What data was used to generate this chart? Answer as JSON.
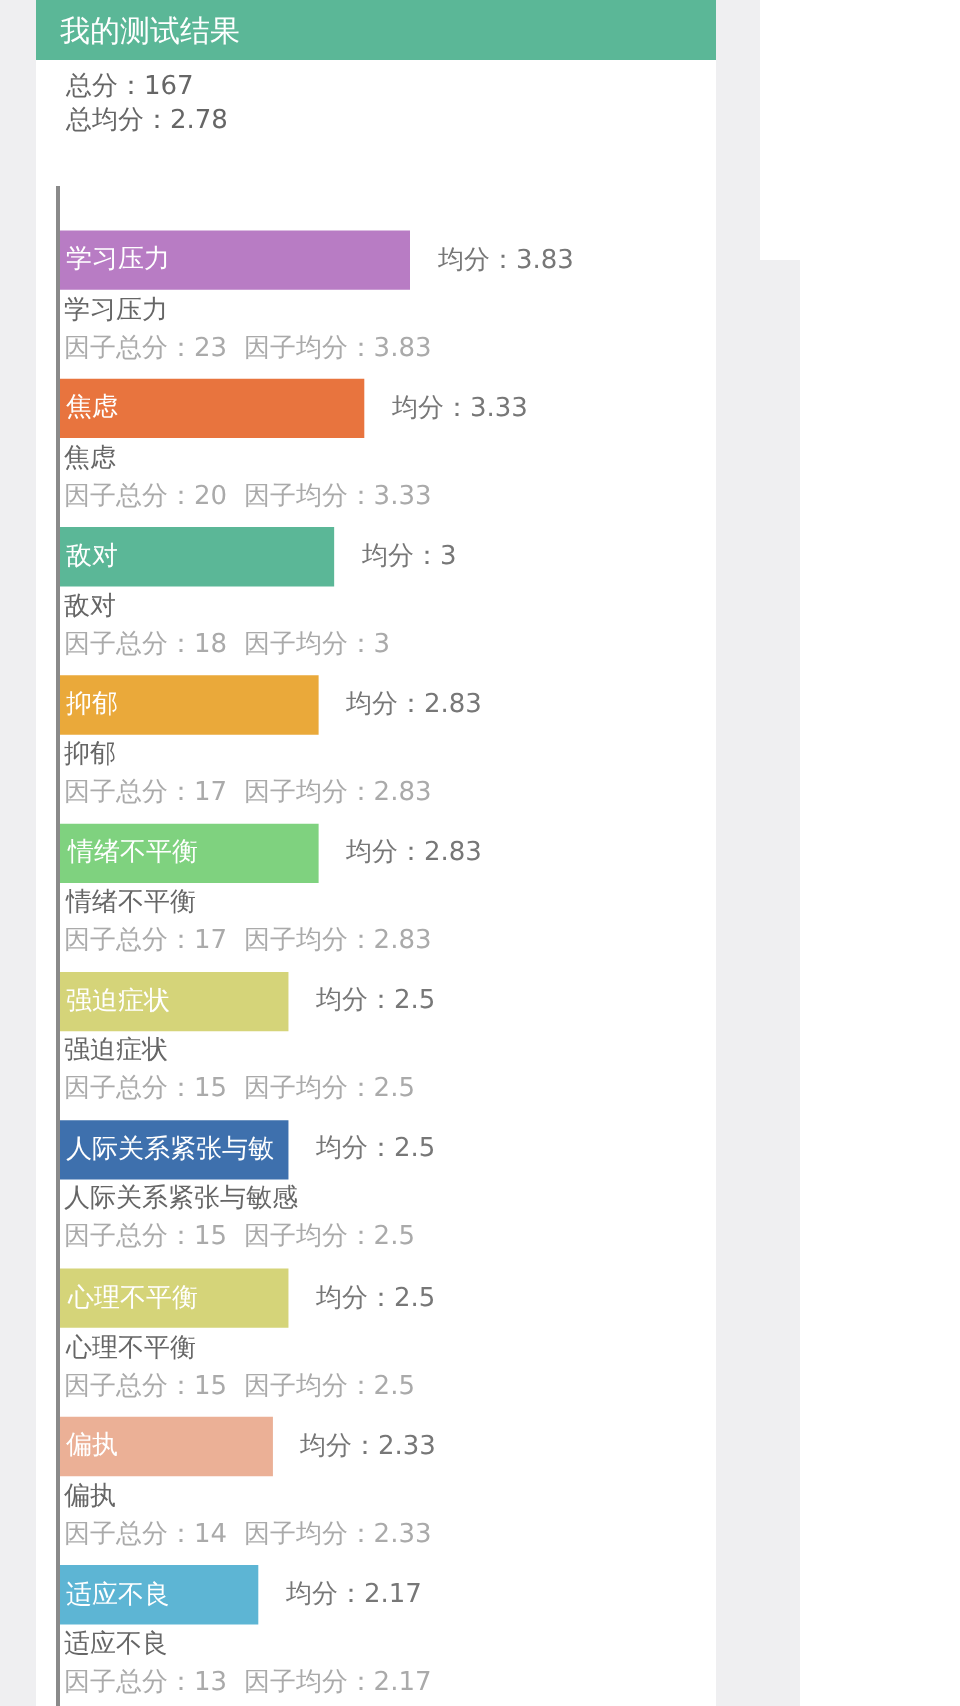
{
  "chart_data": {
    "type": "bar",
    "orientation": "horizontal",
    "title": "我的测试结果",
    "subtitle": "总分：167\n总均分：2.78",
    "categories": [
      "学习压力",
      "焦虑",
      "敌对",
      "抑郁",
      "情绪不平衡",
      "强迫症状",
      "人际关系紧张与敏",
      "心理不平衡",
      "偏执",
      "适应不良"
    ],
    "values": [
      3.83,
      3.33,
      3,
      2.83,
      2.83,
      2.5,
      2.5,
      2.5,
      2.33,
      2.17
    ],
    "colors": [
      "#b87cc4",
      "#e8743e",
      "#5bb797",
      "#eaa93a",
      "#7fd27f",
      "#d5d479",
      "#3e70ad",
      "#d5d479",
      "#ebb096",
      "#5db5d4"
    ],
    "value_labels": [
      "均分：3.83",
      "均分：3.33",
      "均分：3",
      "均分：2.83",
      "均分：2.83",
      "均分：2.5",
      "均分：2.5",
      "均分：2.5",
      "均分：2.33",
      "均分：2.17"
    ],
    "annotations": [
      "学习压力",
      "因子总分：23  因子均分：3.83",
      "焦虑",
      "因子总分：20  因子均分：3.33",
      "敌对",
      "因子总分：18  因子均分：3",
      "抑郁",
      "因子总分：17  因子均分：2.83",
      "情绪不平衡",
      "因子总分：17  因子均分：2.83",
      "强迫症状",
      "因子总分：15  因子均分：2.5",
      "人际关系紧张与敏感",
      "因子总分：15  因子均分：2.5",
      "心理不平衡",
      "因子总分：15  因子均分：2.5",
      "偏执",
      "因子总分：14  因子均分：2.33",
      "适应不良",
      "因子总分：13  因子均分：2.17"
    ],
    "tick_labels": false
  }
}
